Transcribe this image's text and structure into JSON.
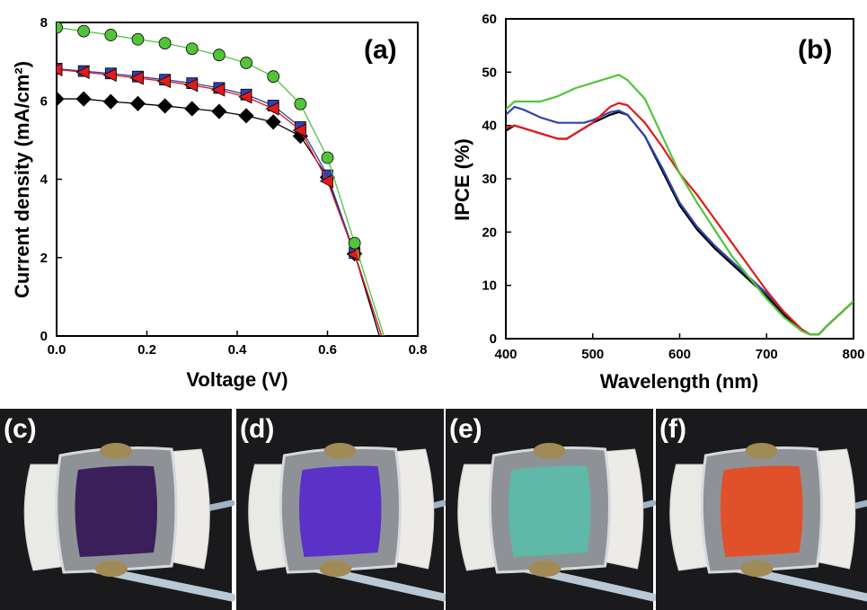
{
  "colors": {
    "black": "#000000",
    "blue": "#2e43b0",
    "red": "#e31a1a",
    "green": "#52c43a"
  },
  "chart_data": [
    {
      "type": "line",
      "panel_label": "(a)",
      "xlabel": "Voltage (V)",
      "ylabel": "Current density (mA/cm²)",
      "xlim": [
        0,
        0.8
      ],
      "ylim": [
        0,
        8
      ],
      "xticks": [
        "0.0",
        "0.2",
        "0.4",
        "0.6",
        "0.8"
      ],
      "yticks": [
        "0",
        "2",
        "4",
        "6",
        "8"
      ],
      "grid": false,
      "series": [
        {
          "color": "black",
          "marker": "diamond",
          "x": [
            0,
            0.06,
            0.12,
            0.18,
            0.24,
            0.3,
            0.36,
            0.42,
            0.48,
            0.54,
            0.6,
            0.66,
            0.715
          ],
          "y": [
            6.05,
            6.05,
            5.98,
            5.93,
            5.87,
            5.8,
            5.73,
            5.62,
            5.46,
            5.1,
            4.05,
            2.1,
            0
          ]
        },
        {
          "color": "blue",
          "marker": "square",
          "x": [
            0,
            0.06,
            0.12,
            0.18,
            0.24,
            0.3,
            0.36,
            0.42,
            0.48,
            0.54,
            0.6,
            0.66,
            0.72
          ],
          "y": [
            6.82,
            6.76,
            6.7,
            6.62,
            6.54,
            6.45,
            6.33,
            6.16,
            5.88,
            5.33,
            4.1,
            2.12,
            0
          ]
        },
        {
          "color": "red",
          "marker": "triangle-left",
          "x": [
            0,
            0.06,
            0.12,
            0.18,
            0.24,
            0.3,
            0.36,
            0.42,
            0.48,
            0.54,
            0.6,
            0.66,
            0.72
          ],
          "y": [
            6.8,
            6.73,
            6.66,
            6.58,
            6.5,
            6.4,
            6.28,
            6.1,
            5.8,
            5.25,
            3.95,
            2.08,
            0
          ]
        },
        {
          "color": "green",
          "marker": "circle",
          "x": [
            0,
            0.06,
            0.12,
            0.18,
            0.24,
            0.3,
            0.36,
            0.42,
            0.48,
            0.54,
            0.6,
            0.66,
            0.725
          ],
          "y": [
            7.87,
            7.78,
            7.68,
            7.57,
            7.47,
            7.33,
            7.17,
            6.97,
            6.62,
            5.92,
            4.55,
            2.37,
            0
          ]
        }
      ]
    },
    {
      "type": "line",
      "panel_label": "(b)",
      "xlabel": "Wavelength (nm)",
      "ylabel": "IPCE (%)",
      "xlim": [
        400,
        800
      ],
      "ylim": [
        0,
        60
      ],
      "xticks": [
        "400",
        "500",
        "600",
        "700",
        "800"
      ],
      "yticks": [
        "0",
        "10",
        "20",
        "30",
        "40",
        "50",
        "60"
      ],
      "grid": false,
      "series": [
        {
          "color": "black",
          "x": [
            400,
            410,
            420,
            440,
            460,
            470,
            480,
            490,
            500,
            520,
            530,
            540,
            560,
            580,
            600,
            620,
            640,
            660,
            680,
            700,
            720,
            740,
            750,
            760,
            770,
            780,
            790,
            800
          ],
          "y": [
            39,
            40,
            39.5,
            38.5,
            37.5,
            37.5,
            38.5,
            39.5,
            40.5,
            42,
            42.5,
            42,
            38,
            31.5,
            25,
            20.5,
            17,
            14,
            11,
            8,
            4.5,
            1.5,
            0.8,
            0.8,
            2.5,
            4,
            5.5,
            7
          ]
        },
        {
          "color": "blue",
          "x": [
            400,
            410,
            420,
            440,
            460,
            480,
            490,
            500,
            520,
            530,
            540,
            560,
            580,
            600,
            620,
            640,
            660,
            680,
            700,
            720,
            740,
            750,
            760,
            770,
            780,
            790,
            800
          ],
          "y": [
            42,
            43.5,
            43,
            41.5,
            40.5,
            40.5,
            40.5,
            41,
            42.5,
            42.8,
            42,
            38,
            32,
            25.5,
            21,
            17.5,
            14.5,
            11.5,
            8.5,
            5,
            1.8,
            0.8,
            0.8,
            2.5,
            4,
            5.5,
            7
          ]
        },
        {
          "color": "red",
          "x": [
            400,
            410,
            420,
            440,
            460,
            470,
            480,
            500,
            520,
            530,
            540,
            560,
            580,
            600,
            620,
            640,
            660,
            680,
            700,
            720,
            740,
            750,
            760,
            770,
            780,
            790,
            800
          ],
          "y": [
            39.5,
            40,
            39.5,
            38.5,
            37.5,
            37.5,
            38.5,
            40.5,
            43.5,
            44.2,
            43.8,
            40.5,
            36,
            31,
            27,
            22.5,
            18,
            13.5,
            9,
            5,
            1.8,
            0.8,
            0.8,
            2.5,
            4,
            5.5,
            7
          ]
        },
        {
          "color": "green",
          "x": [
            400,
            410,
            420,
            440,
            460,
            480,
            500,
            520,
            530,
            540,
            560,
            580,
            600,
            620,
            640,
            660,
            680,
            700,
            720,
            740,
            750,
            760,
            770,
            780,
            790,
            800
          ],
          "y": [
            43,
            44.5,
            44.5,
            44.5,
            45.5,
            47,
            48,
            49,
            49.5,
            48.5,
            45,
            38,
            31,
            25.5,
            20.5,
            15.5,
            11.5,
            7.5,
            4,
            1.5,
            0.8,
            0.8,
            2.5,
            4,
            5.5,
            7
          ]
        }
      ]
    }
  ],
  "photos": [
    {
      "label": "(c)",
      "active_color": "#3a1f5a"
    },
    {
      "label": "(d)",
      "active_color": "#5a32c8"
    },
    {
      "label": "(e)",
      "active_color": "#5fb8a8"
    },
    {
      "label": "(f)",
      "active_color": "#e0502a"
    }
  ]
}
